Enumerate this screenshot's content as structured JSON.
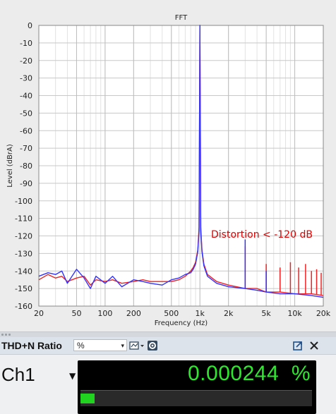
{
  "chart_data": {
    "type": "line",
    "title": "FFT",
    "xlabel": "Frequency (Hz)",
    "ylabel": "Level (dBrA)",
    "x_scale": "log",
    "xlim": [
      20,
      20000
    ],
    "ylim": [
      -160,
      0
    ],
    "x_ticks": [
      20,
      50,
      100,
      200,
      500,
      1000,
      2000,
      5000,
      10000,
      20000
    ],
    "x_tick_labels": [
      "20",
      "50",
      "100",
      "200",
      "500",
      "1k",
      "2k",
      "5k",
      "10k",
      "20k"
    ],
    "y_ticks": [
      0,
      -10,
      -20,
      -30,
      -40,
      -50,
      -60,
      -70,
      -80,
      -90,
      -100,
      -110,
      -120,
      -130,
      -140,
      -150,
      -160
    ],
    "y_tick_labels": [
      "0",
      "-10",
      "-20",
      "-30",
      "-40",
      "-50",
      "-60",
      "-70",
      "-80",
      "-90",
      "-100",
      "-110",
      "-120",
      "-130",
      "-140",
      "-150",
      "-160"
    ],
    "grid": true,
    "annotation": {
      "text": "Distortion < -120 dB",
      "color": "#e00000"
    },
    "series": [
      {
        "color": "#ee2222",
        "x": [
          20,
          25,
          30,
          35,
          40,
          50,
          60,
          70,
          80,
          100,
          120,
          150,
          200,
          250,
          300,
          400,
          500,
          600,
          700,
          800,
          850,
          900,
          950,
          980,
          1000,
          1020,
          1050,
          1100,
          1200,
          1500,
          2000,
          3000,
          4000,
          5000,
          7000,
          10000,
          15000,
          20000
        ],
        "y": [
          -145,
          -142,
          -144,
          -143,
          -146,
          -144,
          -143,
          -148,
          -145,
          -146,
          -145,
          -147,
          -146,
          -145,
          -146,
          -146,
          -146,
          -145,
          -143,
          -140,
          -138,
          -135,
          -128,
          -115,
          0,
          -115,
          -128,
          -136,
          -142,
          -146,
          -148,
          -150,
          -150,
          -152,
          -152,
          -153,
          -153,
          -154
        ],
        "spikes": [
          {
            "x": 3000,
            "y": -126
          },
          {
            "x": 5000,
            "y": -136
          },
          {
            "x": 7000,
            "y": -138
          },
          {
            "x": 9000,
            "y": -135
          },
          {
            "x": 11000,
            "y": -138
          },
          {
            "x": 13000,
            "y": -136
          },
          {
            "x": 15000,
            "y": -140
          },
          {
            "x": 17000,
            "y": -139
          },
          {
            "x": 19000,
            "y": -141
          }
        ]
      },
      {
        "color": "#3333ff",
        "x": [
          20,
          25,
          30,
          35,
          40,
          50,
          60,
          70,
          80,
          100,
          120,
          150,
          200,
          250,
          300,
          400,
          500,
          600,
          700,
          800,
          850,
          900,
          950,
          980,
          1000,
          1020,
          1050,
          1100,
          1200,
          1500,
          2000,
          3000,
          4000,
          5000,
          7000,
          10000,
          15000,
          20000
        ],
        "y": [
          -143,
          -141,
          -142,
          -140,
          -147,
          -139,
          -144,
          -150,
          -143,
          -147,
          -143,
          -149,
          -145,
          -146,
          -147,
          -148,
          -145,
          -144,
          -142,
          -141,
          -139,
          -136,
          -129,
          -117,
          0,
          -117,
          -129,
          -137,
          -143,
          -147,
          -149,
          -150,
          -151,
          -152,
          -153,
          -153,
          -154,
          -155
        ],
        "spikes": [
          {
            "x": 3000,
            "y": -122
          },
          {
            "x": 5000,
            "y": -140
          }
        ]
      }
    ]
  },
  "meter": {
    "title": "THD+N Ratio",
    "unit": "%",
    "channel": "Ch1",
    "value": "0.000244",
    "value_unit": "%",
    "bar_fraction": 0.06
  },
  "icons": {
    "dropdown": "chevron-down-icon",
    "display_options": "display-options-icon",
    "settings": "gear-icon",
    "popout": "popout-icon",
    "close": "close-icon"
  }
}
